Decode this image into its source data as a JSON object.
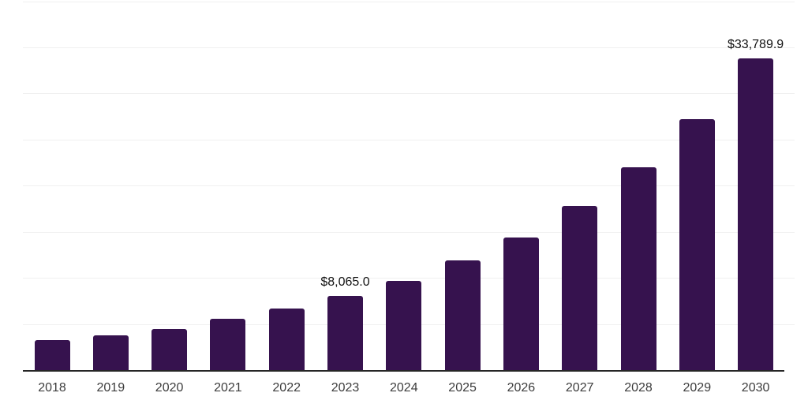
{
  "chart_data": {
    "type": "bar",
    "title": "",
    "xlabel": "",
    "ylabel": "",
    "categories": [
      "2018",
      "2019",
      "2020",
      "2021",
      "2022",
      "2023",
      "2024",
      "2025",
      "2026",
      "2027",
      "2028",
      "2029",
      "2030"
    ],
    "values": [
      3280,
      3790,
      4470,
      5580,
      6690,
      8065.0,
      9670,
      11890,
      14400,
      17810,
      21990,
      27220,
      33789.9
    ],
    "data_labels": {
      "2023": "$8,065.0",
      "2030": "$33,789.9"
    },
    "ylim": [
      0,
      40000
    ],
    "ytick_step": 5000,
    "grid": "horizontal",
    "y_axis_tick_labels": "none",
    "legend": "none",
    "colors": {
      "bar": "#36124e",
      "gridline": "#f0f0f0",
      "axis_line": "#262626",
      "tick_label": "#3c3c3c",
      "data_label": "#121212",
      "background": "#ffffff"
    }
  }
}
